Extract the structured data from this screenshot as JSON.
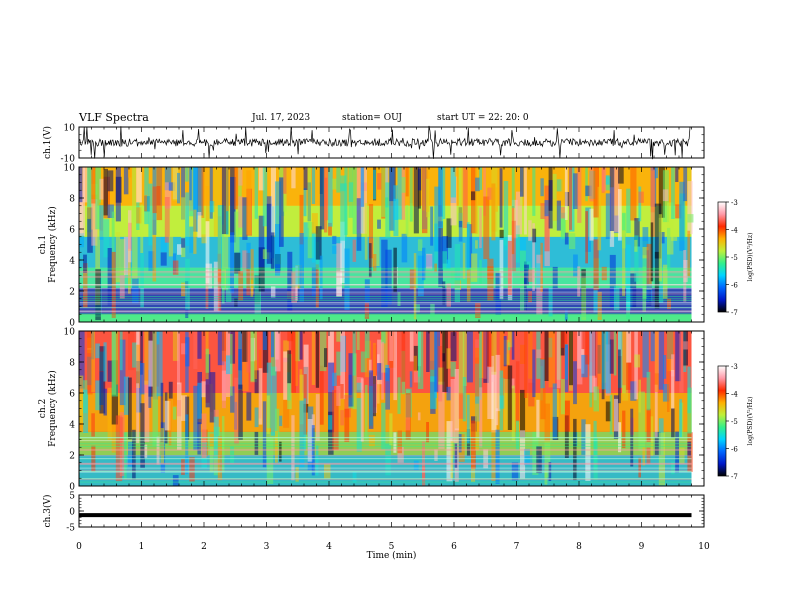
{
  "header": {
    "title": "VLF Spectra",
    "date": "Jul. 17, 2023",
    "station": "station= OUJ",
    "start": "start UT = 22: 20: 0"
  },
  "colors": {
    "ch1_background": "#e3e53a",
    "ch2_background": "#ef4424",
    "colormap": [
      "#000000",
      "#0018c8",
      "#0066ff",
      "#00d4ff",
      "#33f08a",
      "#bff03a",
      "#ffb000",
      "#ff2a00",
      "#ff9aa8",
      "#ffffff"
    ]
  },
  "chart_data": [
    {
      "type": "line",
      "panel": "ch1-waveform",
      "ylabel": "ch.1(V)",
      "ylim": [
        -10,
        10
      ],
      "yticks": [
        "10",
        "-10"
      ],
      "xlim": [
        0,
        10
      ]
    },
    {
      "type": "heatmap",
      "panel": "ch1-spectrogram",
      "ylabel": "ch.1\nFrequency (kHz)",
      "ylim": [
        0,
        10
      ],
      "yticks": [
        "0",
        "2",
        "4",
        "6",
        "8",
        "10"
      ],
      "xlim": [
        0,
        10
      ],
      "data_extent_x": [
        0,
        9.8
      ],
      "colorbar": {
        "label": "log(PSD)(V²/Hz)",
        "range": [
          -7,
          -3
        ],
        "ticks": [
          "-3",
          "-4",
          "-5",
          "-6",
          "-7"
        ]
      },
      "frequency_bands": [
        {
          "f_range": [
            0,
            0.5
          ],
          "log_psd": -5.3
        },
        {
          "f_range": [
            0.5,
            2.2
          ],
          "log_psd": -6.5
        },
        {
          "f_range": [
            2.2,
            3.5
          ],
          "log_psd": -5.4
        },
        {
          "f_range": [
            3.5,
            5.5
          ],
          "log_psd": -5.8
        },
        {
          "f_range": [
            5.5,
            7.5
          ],
          "log_psd": -4.8
        },
        {
          "f_range": [
            7.5,
            10
          ],
          "log_psd": -4.3
        }
      ]
    },
    {
      "type": "heatmap",
      "panel": "ch2-spectrogram",
      "ylabel": "ch.2\nFrequency (kHz)",
      "ylim": [
        0,
        10
      ],
      "yticks": [
        "0",
        "2",
        "4",
        "6",
        "8",
        "10"
      ],
      "xlim": [
        0,
        10
      ],
      "data_extent_x": [
        0,
        9.8
      ],
      "colorbar": {
        "label": "log(PSD)(V²/Hz)",
        "range": [
          -7,
          -3
        ],
        "ticks": [
          "-3",
          "-4",
          "-5",
          "-6",
          "-7"
        ]
      },
      "frequency_bands": [
        {
          "f_range": [
            0,
            2
          ],
          "log_psd": -5.6
        },
        {
          "f_range": [
            2,
            3.5
          ],
          "log_psd": -5.0
        },
        {
          "f_range": [
            3.5,
            6
          ],
          "log_psd": -4.4
        },
        {
          "f_range": [
            6,
            10
          ],
          "log_psd": -3.7
        }
      ]
    },
    {
      "type": "line",
      "panel": "ch3-waveform",
      "ylabel": "ch.3(V)",
      "ylim": [
        -5,
        5
      ],
      "yticks": [
        "5",
        "0",
        "-5"
      ],
      "xlim": [
        0,
        10
      ],
      "xlabel": "Time (min)",
      "xticks": [
        "0",
        "1",
        "2",
        "3",
        "4",
        "5",
        "6",
        "7",
        "8",
        "9",
        "10"
      ],
      "constant_value": -1.3
    }
  ]
}
